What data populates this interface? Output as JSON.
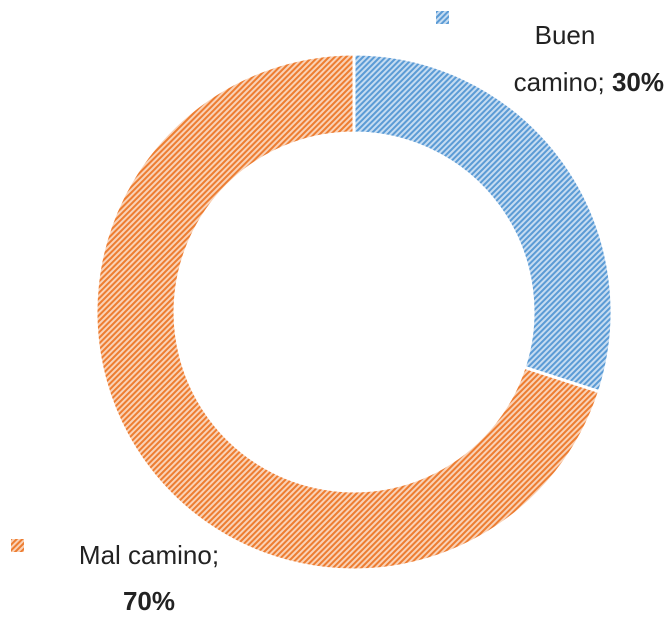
{
  "chart_data": {
    "type": "donut",
    "categories": [
      "Buen camino",
      "Mal camino"
    ],
    "values": [
      30,
      70
    ],
    "value_labels": [
      "30%",
      "70%"
    ],
    "label_separator": ";",
    "colors": [
      "#5b9bd5",
      "#ed7d31"
    ]
  }
}
